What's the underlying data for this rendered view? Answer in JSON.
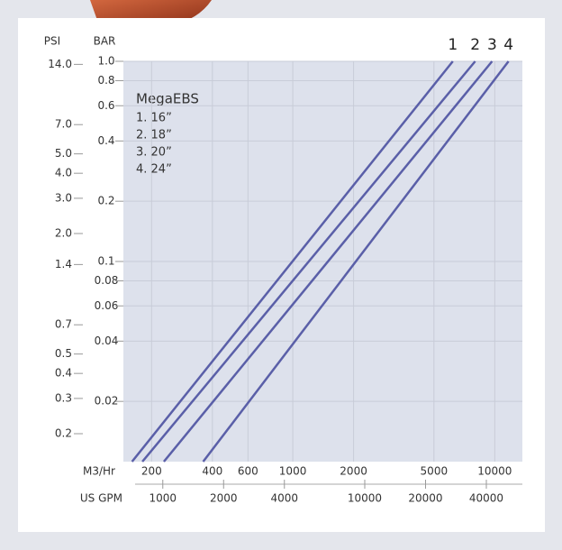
{
  "chart_data": {
    "type": "line",
    "log_x": true,
    "log_y": true,
    "y_axis_label": "BAR",
    "y2_axis_label": "PSI",
    "x_axis_label": "M3/Hr",
    "x2_axis_label": "US GPM",
    "legend_title": "MegaEBS",
    "xlim": [
      145,
      13700
    ],
    "xticks": [
      200,
      400,
      600,
      1000,
      2000,
      5000,
      10000
    ],
    "x2lim": [
      638,
      60320
    ],
    "x2ticks": [
      1000,
      2000,
      4000,
      10000,
      20000,
      40000
    ],
    "ylim": [
      0.01,
      1
    ],
    "yticks": [
      {
        "value": 1,
        "label": "1.0"
      },
      0.8,
      0.6,
      0.4,
      0.2,
      0.1,
      0.08,
      0.06,
      0.04,
      0.02
    ],
    "y2lim": [
      0.145,
      14.5
    ],
    "y2ticks": [
      {
        "value": 14,
        "label": "14.0"
      },
      {
        "value": 7,
        "label": "7.0"
      },
      {
        "value": 5,
        "label": "5.0"
      },
      {
        "value": 4,
        "label": "4.0"
      },
      {
        "value": 3,
        "label": "3.0"
      },
      {
        "value": 2,
        "label": "2.0"
      },
      1.4,
      0.7,
      0.5,
      0.4,
      0.3,
      0.2
    ],
    "grid": true,
    "series": [
      {
        "name": "1. 16”",
        "label": "1",
        "color": "#5a5fa8",
        "x": [
          160,
          6200
        ],
        "values": [
          0.01,
          1
        ]
      },
      {
        "name": "2. 18”",
        "label": "2",
        "color": "#5a5fa8",
        "x": [
          180,
          8000
        ],
        "values": [
          0.01,
          1
        ]
      },
      {
        "name": "3. 20”",
        "label": "3",
        "color": "#5a5fa8",
        "x": [
          230,
          9700
        ],
        "values": [
          0.01,
          1
        ]
      },
      {
        "name": "4. 24”",
        "label": "4",
        "color": "#5a5fa8",
        "x": [
          360,
          11700
        ],
        "values": [
          0.01,
          1
        ]
      }
    ]
  }
}
